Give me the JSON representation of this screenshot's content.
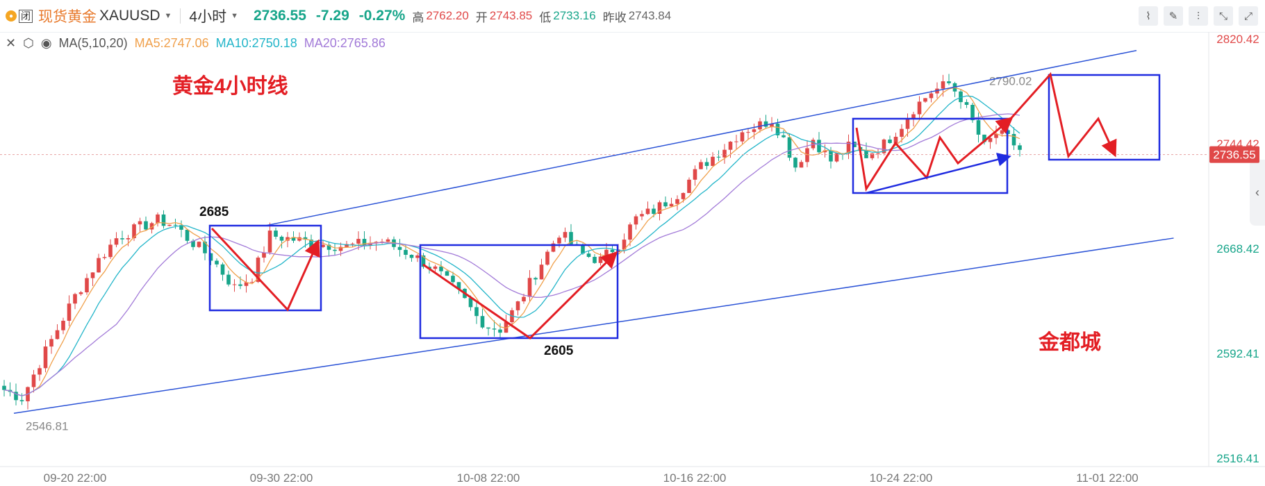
{
  "header": {
    "closed_label": "闭",
    "symbol_name": "现货黄金",
    "symbol_code": "XAUUSD",
    "period": "4小时",
    "last_price": "2736.55",
    "change": "-7.29",
    "change_pct": "-0.27%",
    "high_label": "高",
    "high": "2762.20",
    "open_label": "开",
    "open": "2743.85",
    "low_label": "低",
    "low": "2733.16",
    "prev_close_label": "昨收",
    "prev_close": "2743.84"
  },
  "indicators": {
    "name": "MA(5,10,20)",
    "ma5": "MA5:2747.06",
    "ma10": "MA10:2750.18",
    "ma20": "MA20:2765.86"
  },
  "toolbar_icons": [
    "line-tool-icon",
    "pencil-icon",
    "indicator-icon",
    "collapse-icon",
    "expand-icon"
  ],
  "chart_data": {
    "type": "candlestick",
    "x_ticks": [
      "09-20 22:00",
      "09-30 22:00",
      "10-08 22:00",
      "10-16 22:00",
      "10-24 22:00",
      "11-01 22:00"
    ],
    "y_ticks": [
      "2820.42",
      "2744.42",
      "2668.42",
      "2592.41",
      "2516.41"
    ],
    "ylim": [
      2516.41,
      2820.42
    ],
    "current_price": "2736.55",
    "max_label": "2790.02",
    "min_label": "2546.81",
    "colors": {
      "up": "#e04848",
      "down": "#17a58a",
      "ma5": "#f0a04b",
      "ma10": "#22b5c9",
      "ma20": "#a27ad8",
      "annotation": "#e31e24",
      "box": "#1f2be0",
      "channel": "#2a52d6"
    },
    "annotations": {
      "title": "黄金4小时线",
      "watermark": "金都城",
      "peak_label": "2685",
      "trough_label": "2605",
      "peak_value": 2685,
      "trough_value": 2605
    },
    "channel": {
      "upper": [
        [
          13,
          2685
        ],
        [
          178,
          2812
        ]
      ],
      "lower": [
        [
          0,
          2549
        ],
        [
          183,
          2676
        ]
      ]
    },
    "waypoints": [
      [
        0,
        2566
      ],
      [
        3,
        2560
      ],
      [
        7,
        2594
      ],
      [
        12,
        2634
      ],
      [
        16,
        2660
      ],
      [
        19,
        2676
      ],
      [
        23,
        2684
      ],
      [
        26,
        2689
      ],
      [
        29,
        2685
      ],
      [
        31,
        2676
      ],
      [
        35,
        2662
      ],
      [
        39,
        2640
      ],
      [
        42,
        2648
      ],
      [
        45,
        2678
      ],
      [
        49,
        2675
      ],
      [
        53,
        2672
      ],
      [
        58,
        2670
      ],
      [
        61,
        2672
      ],
      [
        64,
        2674
      ],
      [
        69,
        2664
      ],
      [
        73,
        2653
      ],
      [
        77,
        2636
      ],
      [
        80,
        2619
      ],
      [
        82,
        2612
      ],
      [
        84,
        2610
      ],
      [
        87,
        2628
      ],
      [
        91,
        2658
      ],
      [
        94,
        2680
      ],
      [
        98,
        2664
      ],
      [
        101,
        2660
      ],
      [
        104,
        2672
      ],
      [
        107,
        2690
      ],
      [
        110,
        2696
      ],
      [
        114,
        2708
      ],
      [
        118,
        2728
      ],
      [
        122,
        2742
      ],
      [
        125,
        2754
      ],
      [
        128,
        2758
      ],
      [
        130,
        2762
      ],
      [
        132,
        2748
      ],
      [
        134,
        2728
      ],
      [
        137,
        2748
      ],
      [
        140,
        2732
      ],
      [
        143,
        2742
      ],
      [
        146,
        2736
      ],
      [
        149,
        2744
      ],
      [
        152,
        2758
      ],
      [
        154,
        2770
      ],
      [
        157,
        2782
      ],
      [
        160,
        2788
      ],
      [
        162,
        2778
      ],
      [
        164,
        2760
      ],
      [
        166,
        2742
      ],
      [
        168,
        2752
      ],
      [
        170,
        2748
      ],
      [
        172,
        2740
      ]
    ],
    "candle_count": 173
  }
}
